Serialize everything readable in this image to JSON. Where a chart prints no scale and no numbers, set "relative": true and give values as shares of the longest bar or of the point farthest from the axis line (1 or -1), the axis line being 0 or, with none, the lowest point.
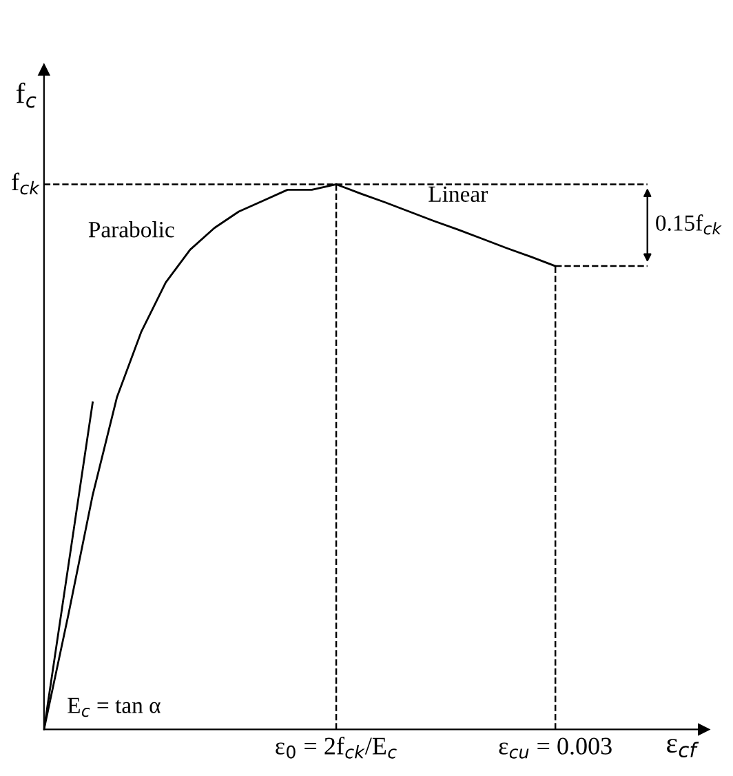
{
  "chart_data": {
    "type": "line",
    "relative": true,
    "xlabel": "ε$_{cf}$",
    "ylabel": "f$_{c}$",
    "categories": [
      null,
      null,
      null,
      null,
      null,
      null,
      null,
      null,
      null,
      null,
      null,
      null,
      null,
      null,
      null,
      null,
      null,
      null,
      null,
      null,
      null,
      null
    ],
    "series": [
      {
        "name": "Parabolic",
        "color": "#000000",
        "values": [
          0,
          0.21,
          0.43,
          0.61,
          0.73,
          0.82,
          0.88,
          0.92,
          0.95,
          0.97,
          0.99,
          0.99,
          1,
          null,
          null,
          null,
          null,
          null,
          null,
          null,
          null,
          null
        ]
      },
      {
        "name": "Linear",
        "color": "#000000",
        "values": [
          null,
          null,
          null,
          null,
          null,
          null,
          null,
          null,
          null,
          null,
          null,
          null,
          1,
          0.983,
          0.967,
          0.95,
          0.933,
          0.917,
          0.9,
          0.883,
          0.867,
          0.85
        ]
      },
      {
        "color": "#000000",
        "values": [
          0,
          0.3,
          0.6,
          null,
          null,
          null,
          null,
          null,
          null,
          null,
          null,
          null,
          null,
          null,
          null,
          null,
          null,
          null,
          null,
          null,
          null,
          null
        ]
      }
    ],
    "annotations": [
      "f$_{ck}$",
      "ε$_{0}$ = 2f$_{ck}$/E$_{c}$",
      "ε$_{cu}$ = 0.003",
      "0.15f$_{ck}$",
      "E$_{c}$ = tan α"
    ],
    "grid": false,
    "legend": false,
    "line_style": "solid",
    "marker": "none"
  }
}
